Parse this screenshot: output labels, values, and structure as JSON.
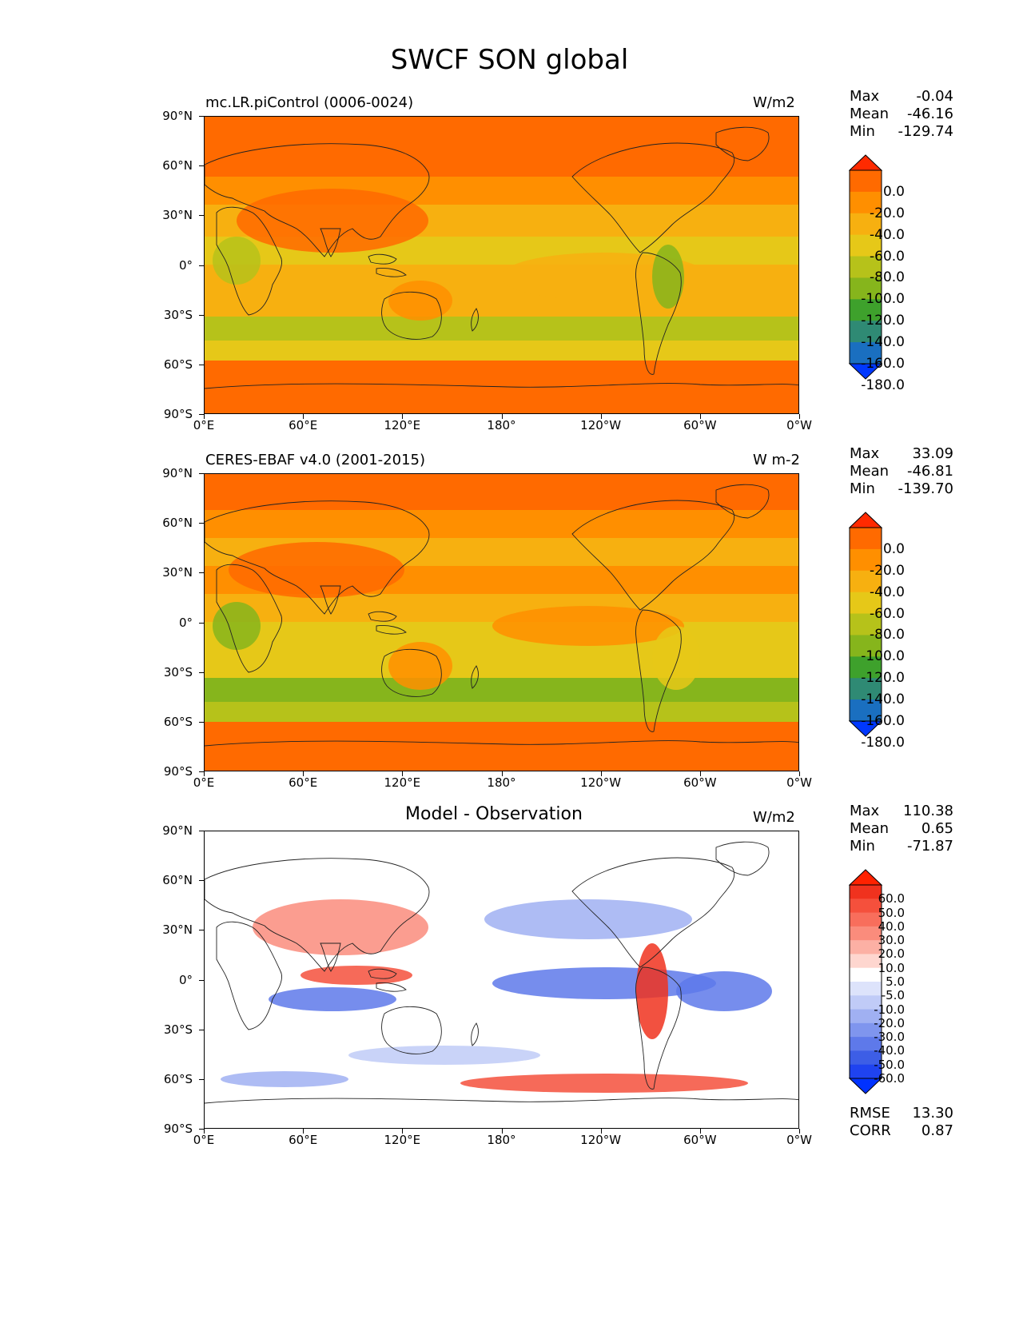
{
  "figure_title": "SWCF SON global",
  "lat_labels": [
    "90°N",
    "60°N",
    "30°N",
    "0°",
    "30°S",
    "60°S",
    "90°S"
  ],
  "lon_labels": [
    "0°E",
    "60°E",
    "120°E",
    "180°",
    "120°W",
    "60°W",
    "0°W"
  ],
  "panels": [
    {
      "left_label": "mc.LR.piControl (0006-0024)",
      "center_title": "",
      "units": "W/m2",
      "stats": {
        "max_label": "Max",
        "max": "-0.04",
        "mean_label": "Mean",
        "mean": "-46.16",
        "min_label": "Min",
        "min": "-129.74"
      },
      "colorbar_labels": [
        "0.0",
        "-20.0",
        "-40.0",
        "-60.0",
        "-80.0",
        "-100.0",
        "-120.0",
        "-140.0",
        "-160.0",
        "-180.0"
      ],
      "colorbar_colors": [
        "#ff2a00",
        "#ff6a00",
        "#ff8f00",
        "#f7b010",
        "#e6c818",
        "#b6c21a",
        "#86b51c",
        "#3ea12c",
        "#2f8a74",
        "#1a6fc0",
        "#0038ff"
      ]
    },
    {
      "left_label": "CERES-EBAF v4.0 (2001-2015)",
      "center_title": "",
      "units": "W m-2",
      "stats": {
        "max_label": "Max",
        "max": "33.09",
        "mean_label": "Mean",
        "mean": "-46.81",
        "min_label": "Min",
        "min": "-139.70"
      },
      "colorbar_labels": [
        "0.0",
        "-20.0",
        "-40.0",
        "-60.0",
        "-80.0",
        "-100.0",
        "-120.0",
        "-140.0",
        "-160.0",
        "-180.0"
      ],
      "colorbar_colors": [
        "#ff2a00",
        "#ff6a00",
        "#ff8f00",
        "#f7b010",
        "#e6c818",
        "#b6c21a",
        "#86b51c",
        "#3ea12c",
        "#2f8a74",
        "#1a6fc0",
        "#0038ff"
      ]
    },
    {
      "left_label": "",
      "center_title": "Model - Observation",
      "units": "W/m2",
      "stats": {
        "max_label": "Max",
        "max": "110.38",
        "mean_label": "Mean",
        "mean": "0.65",
        "min_label": "Min",
        "min": "-71.87"
      },
      "colorbar_labels": [
        "60.0",
        "50.0",
        "40.0",
        "30.0",
        "20.0",
        "10.0",
        "5.0",
        "-5.0",
        "-10.0",
        "-20.0",
        "-30.0",
        "-40.0",
        "-50.0",
        "-60.0"
      ],
      "colorbar_colors": [
        "#ff2200",
        "#f0321e",
        "#f5503c",
        "#f86e5c",
        "#fa8c7c",
        "#fcb0a4",
        "#fed6cf",
        "#ffffff",
        "#dde3fb",
        "#c0cbf7",
        "#a0b0f2",
        "#7f95ee",
        "#5e79ea",
        "#3d5ee6",
        "#1f43f0",
        "#0032ff"
      ],
      "rmse_label": "RMSE",
      "rmse": "13.30",
      "corr_label": "CORR",
      "corr": "0.87"
    }
  ]
}
